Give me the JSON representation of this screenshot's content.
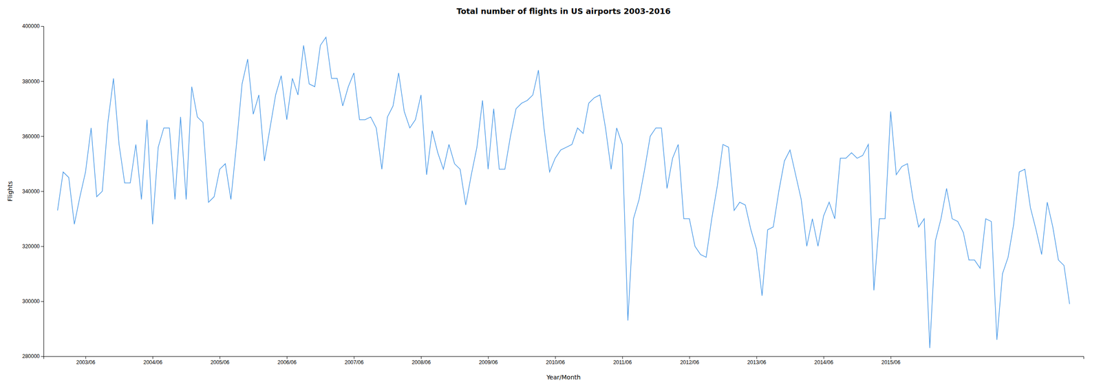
{
  "chart_data": {
    "type": "line",
    "title": "Total number of flights in US airports 2003-2016",
    "x_label": "Year/Month",
    "y_label": "Flights",
    "color": "#4C9BE8",
    "grid": false,
    "ylim": [
      280000,
      400000
    ],
    "yticks": [
      280000,
      300000,
      320000,
      340000,
      360000,
      380000,
      400000
    ],
    "categories": [
      null,
      null,
      null,
      null,
      null,
      "2003/06",
      null,
      null,
      null,
      null,
      null,
      null,
      null,
      null,
      null,
      null,
      null,
      "2004/06",
      null,
      null,
      null,
      null,
      null,
      null,
      null,
      null,
      null,
      null,
      null,
      "2005/06",
      null,
      null,
      null,
      null,
      null,
      null,
      null,
      null,
      null,
      null,
      null,
      "2006/06",
      null,
      null,
      null,
      null,
      null,
      null,
      null,
      null,
      null,
      null,
      null,
      "2007/06",
      null,
      null,
      null,
      null,
      null,
      null,
      null,
      null,
      null,
      null,
      null,
      "2008/06",
      null,
      null,
      null,
      null,
      null,
      null,
      null,
      null,
      null,
      null,
      null,
      "2009/06",
      null,
      null,
      null,
      null,
      null,
      null,
      null,
      null,
      null,
      null,
      null,
      "2010/06",
      null,
      null,
      null,
      null,
      null,
      null,
      null,
      null,
      null,
      null,
      null,
      "2011/06",
      null,
      null,
      null,
      null,
      null,
      null,
      null,
      null,
      null,
      null,
      null,
      "2012/06",
      null,
      null,
      null,
      null,
      null,
      null,
      null,
      null,
      null,
      null,
      null,
      "2013/06",
      null,
      null,
      null,
      null,
      null,
      null,
      null,
      null,
      null,
      null,
      null,
      "2014/06",
      null,
      null,
      null,
      null,
      null,
      null,
      null,
      null,
      null,
      null,
      null,
      "2015/06",
      null,
      null,
      null,
      null,
      null,
      null,
      null,
      null,
      null,
      null,
      null,
      null,
      null,
      null,
      null,
      null,
      null,
      null,
      null,
      null,
      null,
      null,
      null,
      null,
      null,
      null,
      null,
      null,
      null,
      null,
      null,
      null
    ],
    "values": [
      333000,
      347000,
      345000,
      328000,
      338000,
      347000,
      363000,
      338000,
      340000,
      365000,
      381000,
      357000,
      343000,
      343000,
      357000,
      337000,
      366000,
      328000,
      356000,
      363000,
      363000,
      337000,
      367000,
      337000,
      378000,
      367000,
      365000,
      336000,
      338000,
      348000,
      350000,
      337000,
      357000,
      379000,
      388000,
      368000,
      375000,
      351000,
      363000,
      375000,
      382000,
      366000,
      381000,
      375000,
      393000,
      379000,
      378000,
      393000,
      396000,
      381000,
      381000,
      371000,
      378000,
      383000,
      366000,
      366000,
      367000,
      363000,
      348000,
      367000,
      371000,
      383000,
      369000,
      363000,
      366000,
      375000,
      346000,
      362000,
      354000,
      348000,
      357000,
      350000,
      348000,
      335000,
      346000,
      356000,
      373000,
      348000,
      370000,
      348000,
      348000,
      360000,
      370000,
      372000,
      373000,
      375000,
      384000,
      363000,
      347000,
      352000,
      355000,
      356000,
      357000,
      363000,
      361000,
      372000,
      374000,
      375000,
      363000,
      348000,
      363000,
      357000,
      293000,
      330000,
      337000,
      348000,
      360000,
      363000,
      363000,
      341000,
      352000,
      357000,
      330000,
      330000,
      320000,
      317000,
      316000,
      330000,
      342000,
      357000,
      356000,
      333000,
      336000,
      335000,
      326000,
      319000,
      302000,
      326000,
      327000,
      340000,
      351000,
      355000,
      346000,
      337000,
      320000,
      330000,
      320000,
      331000,
      336000,
      330000,
      352000,
      352000,
      354000,
      352000,
      353000,
      357000,
      304000,
      330000,
      330000,
      369000,
      346000,
      349000,
      350000,
      337000,
      327000,
      330000,
      283000,
      322000,
      330000,
      341000,
      330000,
      329000,
      325000,
      315000,
      315000,
      312000,
      330000,
      329000,
      286000,
      310000,
      316000,
      328000,
      347000,
      348000,
      334000,
      326000,
      317000,
      336000,
      327000,
      315000,
      313000,
      299000
    ]
  }
}
